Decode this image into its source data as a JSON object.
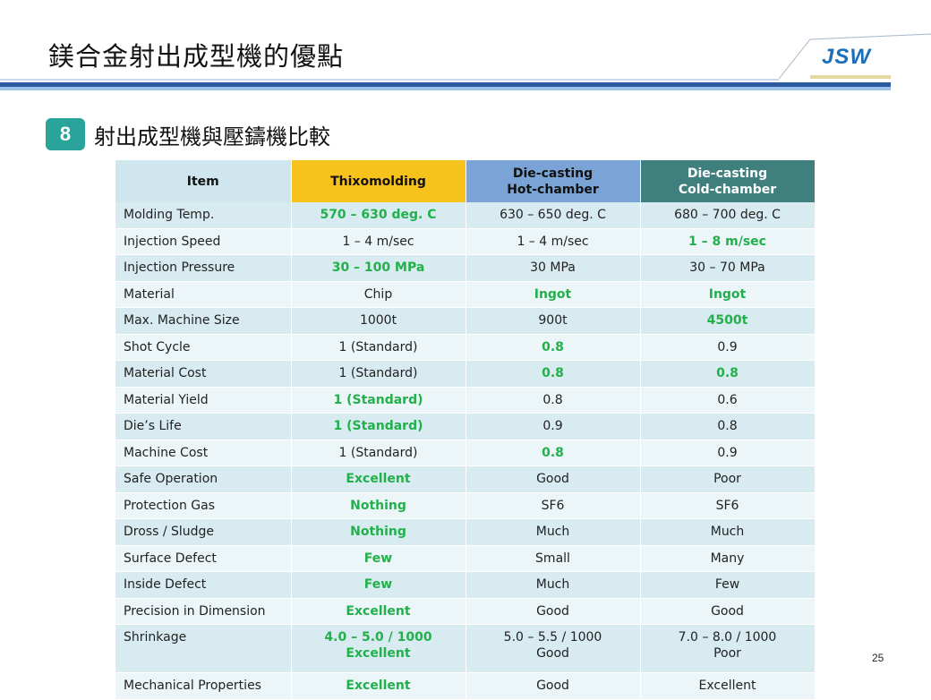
{
  "header": {
    "title": "鎂合金射出成型機的優點",
    "logo_text": "JSW"
  },
  "section": {
    "number": "8",
    "title": "射出成型機與壓鑄機比較"
  },
  "table": {
    "headers": {
      "item": "Item",
      "thixo": "Thixomolding",
      "hot_line1": "Die-casting",
      "hot_line2": "Hot-chamber",
      "cold_line1": "Die-casting",
      "cold_line2": "Cold-chamber"
    },
    "rows": [
      {
        "label": "Molding Temp.",
        "thixo": "570 – 630 deg. C",
        "hot": "630 – 650 deg. C",
        "cold": "680 – 700 deg. C"
      },
      {
        "label": "Injection Speed",
        "thixo": "1 – 4 m/sec",
        "hot": "1 – 4 m/sec",
        "cold": "1 – 8 m/sec"
      },
      {
        "label": "Injection Pressure",
        "thixo": "30 – 100 MPa",
        "hot": "30 MPa",
        "cold": "30 – 70 MPa"
      },
      {
        "label": "Material",
        "thixo": "Chip",
        "hot": "Ingot",
        "cold": "Ingot"
      },
      {
        "label": "Max. Machine Size",
        "thixo": "1000t",
        "hot": "900t",
        "cold": "4500t"
      },
      {
        "label": "Shot Cycle",
        "thixo": "1 (Standard)",
        "hot": "0.8",
        "cold": "0.9"
      },
      {
        "label": "Material Cost",
        "thixo": "1 (Standard)",
        "hot": "0.8",
        "cold": "0.8"
      },
      {
        "label": "Material Yield",
        "thixo": "1 (Standard)",
        "hot": "0.8",
        "cold": "0.6"
      },
      {
        "label": "Die’s Life",
        "thixo": "1 (Standard)",
        "hot": "0.9",
        "cold": "0.8"
      },
      {
        "label": "Machine Cost",
        "thixo": "1 (Standard)",
        "hot": "0.8",
        "cold": "0.9"
      },
      {
        "label": "Safe Operation",
        "thixo": "Excellent",
        "hot": "Good",
        "cold": "Poor"
      },
      {
        "label": "Protection Gas",
        "thixo": "Nothing",
        "hot": "SF6",
        "cold": "SF6"
      },
      {
        "label": "Dross / Sludge",
        "thixo": "Nothing",
        "hot": "Much",
        "cold": "Much"
      },
      {
        "label": "Surface Defect",
        "thixo": "Few",
        "hot": "Small",
        "cold": "Many"
      },
      {
        "label": "Inside Defect",
        "thixo": "Few",
        "hot": "Much",
        "cold": "Few"
      },
      {
        "label": "Precision in Dimension",
        "thixo": "Excellent",
        "hot": "Good",
        "cold": "Good"
      },
      {
        "label": "Shrinkage",
        "thixo": "4.0 – 5.0 / 1000",
        "thixo2": "Excellent",
        "hot": "5.0 – 5.5 / 1000",
        "hot2": "Good",
        "cold": "7.0 – 8.0 / 1000",
        "cold2": "Poor"
      },
      {
        "label": "Mechanical Properties",
        "thixo": "Excellent",
        "hot": "Good",
        "cold": "Excellent"
      }
    ]
  },
  "page_number": "25",
  "colors": {
    "highlight": "#22b04b",
    "thixo_header": "#f7c21b",
    "hot_header": "#7aa3d6",
    "cold_header": "#3f807f",
    "section_badge": "#2aa39a",
    "logo": "#1d6fb8"
  }
}
